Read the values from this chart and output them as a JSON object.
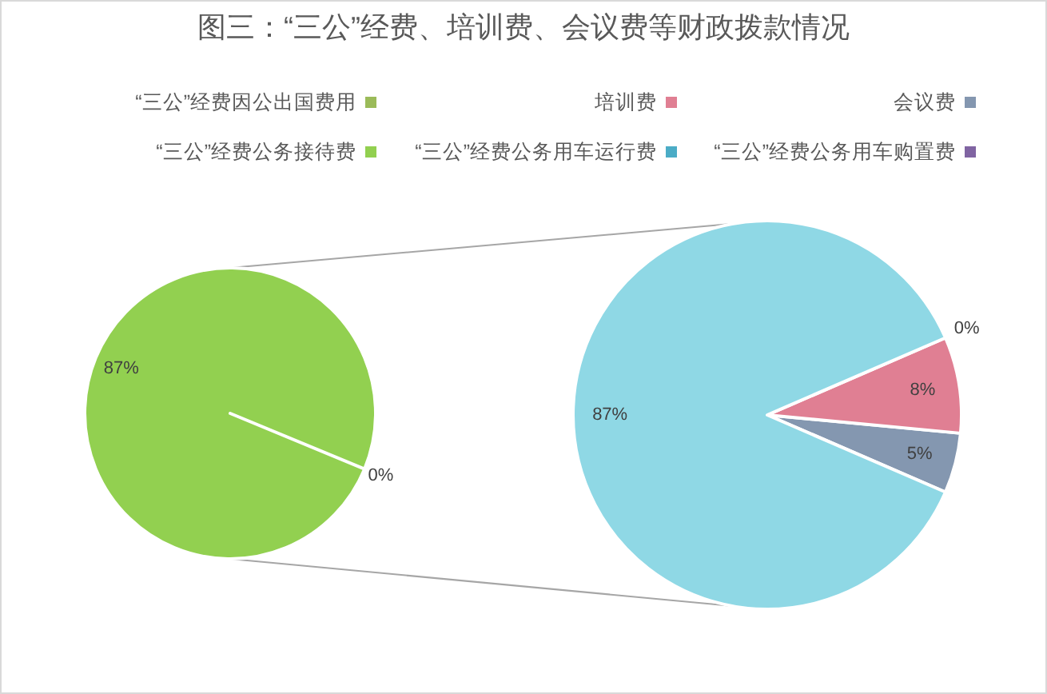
{
  "chart_data": [
    {
      "type": "pie",
      "title": "图三：“三公”经费、培训费、会议费等财政拨款情况",
      "categories": [
        "会议费",
        "培训费",
        "“三公”经费因公出国费用",
        null
      ],
      "values": [
        5,
        8,
        0,
        87
      ],
      "colors": [
        "#8497b0",
        "#e07f93",
        "#9bbb59",
        "#8fd8e5"
      ],
      "value_labels": [
        "5%",
        "8%",
        "0%",
        "87%"
      ],
      "legend": "top"
    },
    {
      "type": "pie",
      "categories": [
        "“三公”经费公务用车购置费",
        "“三公”经费公务用车运行费",
        "“三公”经费公务接待费"
      ],
      "values": [
        0,
        0,
        87
      ],
      "colors": [
        "#8064a2",
        "#4bacc6",
        "#92d050"
      ],
      "value_labels": [
        "0%",
        null,
        "87%"
      ],
      "legend": "top"
    }
  ]
}
